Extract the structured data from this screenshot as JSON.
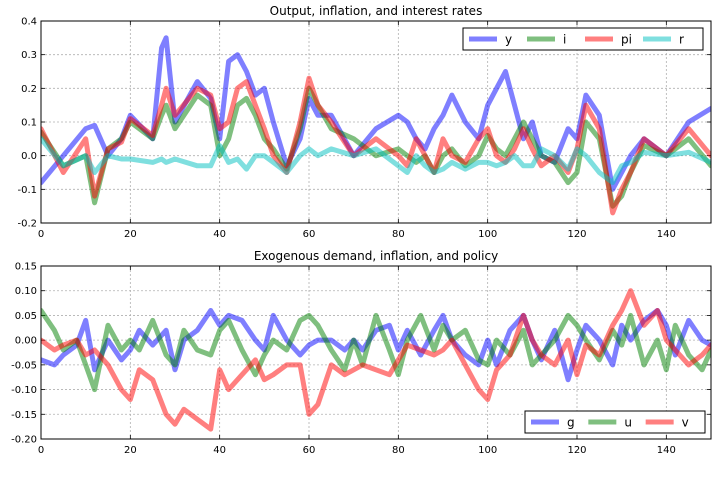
{
  "chart_data": [
    {
      "type": "line",
      "title": "Output, inflation, and interest rates",
      "xlabel": "",
      "ylabel": "",
      "xlim": [
        0,
        150
      ],
      "ylim": [
        -0.2,
        0.4
      ],
      "xticks": [
        "0",
        "20",
        "40",
        "60",
        "80",
        "100",
        "120",
        "140"
      ],
      "yticks": [
        "-0.2",
        "-0.1",
        "0.0",
        "0.1",
        "0.2",
        "0.3",
        "0.4"
      ],
      "grid": true,
      "legend": "top-right",
      "x": [
        0,
        5,
        10,
        12,
        15,
        18,
        20,
        25,
        27,
        28,
        30,
        35,
        38,
        40,
        42,
        44,
        46,
        48,
        50,
        52,
        55,
        58,
        60,
        62,
        65,
        70,
        75,
        80,
        82,
        84,
        86,
        88,
        90,
        92,
        95,
        98,
        100,
        102,
        104,
        106,
        108,
        110,
        112,
        115,
        118,
        120,
        122,
        125,
        128,
        130,
        132,
        135,
        140,
        145,
        150
      ],
      "series": [
        {
          "name": "y",
          "color": "#0000ff",
          "values": [
            -0.08,
            0.0,
            0.08,
            0.09,
            0.0,
            0.05,
            0.12,
            0.05,
            0.32,
            0.35,
            0.1,
            0.22,
            0.17,
            0.05,
            0.28,
            0.3,
            0.25,
            0.18,
            0.2,
            0.1,
            -0.03,
            0.05,
            0.17,
            0.12,
            0.12,
            0.0,
            0.08,
            0.12,
            0.1,
            0.05,
            0.02,
            0.08,
            0.12,
            0.18,
            0.1,
            0.05,
            0.15,
            0.2,
            0.25,
            0.15,
            0.05,
            0.1,
            0.0,
            -0.02,
            0.08,
            0.05,
            0.18,
            0.12,
            -0.1,
            -0.05,
            0.0,
            0.05,
            0.0,
            0.1,
            0.14
          ]
        },
        {
          "name": "i",
          "color": "#008000",
          "values": [
            0.07,
            -0.03,
            0.0,
            -0.14,
            0.02,
            0.05,
            0.1,
            0.05,
            0.12,
            0.15,
            0.08,
            0.18,
            0.15,
            0.0,
            0.05,
            0.15,
            0.17,
            0.12,
            0.05,
            0.02,
            -0.04,
            0.08,
            0.2,
            0.15,
            0.08,
            0.05,
            0.0,
            0.02,
            0.0,
            -0.02,
            0.0,
            -0.05,
            0.0,
            0.02,
            -0.03,
            0.0,
            0.06,
            0.02,
            0.0,
            0.05,
            0.1,
            0.05,
            0.0,
            -0.02,
            -0.08,
            -0.05,
            0.1,
            0.05,
            -0.15,
            -0.12,
            -0.05,
            0.03,
            0.0,
            0.05,
            -0.03
          ]
        },
        {
          "name": "pi",
          "color": "#ff0000",
          "values": [
            0.08,
            -0.05,
            0.05,
            -0.12,
            0.02,
            0.04,
            0.11,
            0.06,
            0.15,
            0.2,
            0.12,
            0.2,
            0.18,
            0.08,
            0.1,
            0.2,
            0.22,
            0.15,
            0.08,
            0.0,
            -0.05,
            0.1,
            0.23,
            0.15,
            0.1,
            0.0,
            0.05,
            0.0,
            -0.03,
            0.05,
            0.0,
            -0.05,
            0.05,
            0.0,
            -0.02,
            0.05,
            0.08,
            0.0,
            -0.02,
            0.02,
            0.08,
            0.02,
            -0.03,
            0.0,
            -0.05,
            0.02,
            0.15,
            0.08,
            -0.17,
            -0.1,
            -0.05,
            0.05,
            0.0,
            0.08,
            0.0
          ]
        },
        {
          "name": "r",
          "color": "#00bfbf",
          "values": [
            0.05,
            -0.03,
            0.0,
            -0.05,
            0.0,
            -0.01,
            -0.01,
            -0.02,
            -0.01,
            -0.02,
            -0.01,
            -0.03,
            -0.03,
            0.03,
            -0.02,
            -0.01,
            -0.04,
            0.0,
            0.0,
            -0.02,
            -0.05,
            0.0,
            0.02,
            0.0,
            0.02,
            0.0,
            0.02,
            -0.03,
            -0.05,
            0.0,
            -0.03,
            -0.05,
            -0.04,
            -0.02,
            -0.04,
            -0.02,
            -0.02,
            -0.03,
            -0.02,
            0.0,
            -0.03,
            -0.03,
            0.02,
            0.0,
            -0.04,
            0.02,
            0.0,
            -0.05,
            -0.08,
            -0.03,
            -0.02,
            0.01,
            0.0,
            0.01,
            -0.02
          ]
        }
      ]
    },
    {
      "type": "line",
      "title": "Exogenous demand, inflation, and policy",
      "xlabel": "",
      "ylabel": "",
      "xlim": [
        0,
        150
      ],
      "ylim": [
        -0.2,
        0.15
      ],
      "xticks": [
        "0",
        "20",
        "40",
        "60",
        "80",
        "100",
        "120",
        "140"
      ],
      "yticks": [
        "-0.20",
        "-0.15",
        "-0.10",
        "-0.05",
        "0.00",
        "0.05",
        "0.10",
        "0.15"
      ],
      "grid": true,
      "legend": "bottom-right",
      "x": [
        0,
        3,
        5,
        8,
        10,
        12,
        15,
        18,
        20,
        22,
        25,
        28,
        30,
        32,
        35,
        38,
        40,
        42,
        45,
        48,
        50,
        52,
        55,
        58,
        60,
        62,
        65,
        68,
        70,
        72,
        75,
        78,
        80,
        82,
        85,
        88,
        90,
        92,
        95,
        98,
        100,
        102,
        105,
        108,
        110,
        112,
        115,
        118,
        120,
        122,
        125,
        128,
        130,
        132,
        135,
        138,
        140,
        142,
        145,
        148,
        150
      ],
      "series": [
        {
          "name": "g",
          "color": "#0000ff",
          "values": [
            -0.04,
            -0.05,
            -0.03,
            -0.01,
            0.04,
            -0.06,
            0.0,
            -0.04,
            -0.02,
            0.02,
            -0.01,
            0.02,
            -0.06,
            0.0,
            0.02,
            0.06,
            0.03,
            0.05,
            0.04,
            0.0,
            -0.02,
            0.05,
            0.0,
            -0.03,
            -0.01,
            0.0,
            0.0,
            -0.02,
            0.0,
            -0.02,
            0.02,
            0.03,
            -0.02,
            0.02,
            -0.03,
            0.02,
            0.05,
            0.0,
            -0.03,
            -0.05,
            0.0,
            -0.05,
            0.02,
            0.05,
            0.0,
            -0.04,
            0.02,
            -0.08,
            -0.02,
            0.03,
            0.0,
            -0.05,
            0.03,
            0.0,
            0.04,
            0.06,
            0.03,
            -0.03,
            0.04,
            0.0,
            -0.01
          ]
        },
        {
          "name": "u",
          "color": "#008000",
          "values": [
            0.06,
            0.02,
            -0.02,
            0.0,
            -0.05,
            -0.1,
            0.03,
            -0.02,
            0.0,
            -0.02,
            0.04,
            -0.03,
            -0.05,
            0.02,
            -0.02,
            -0.03,
            0.02,
            0.04,
            -0.02,
            -0.07,
            -0.03,
            0.0,
            -0.02,
            0.04,
            0.05,
            0.03,
            -0.02,
            -0.06,
            0.0,
            -0.05,
            0.05,
            -0.02,
            -0.07,
            0.0,
            0.05,
            -0.02,
            0.03,
            0.0,
            0.02,
            -0.04,
            -0.05,
            0.0,
            -0.03,
            0.02,
            -0.05,
            -0.03,
            0.0,
            0.05,
            0.03,
            0.0,
            -0.04,
            0.02,
            -0.01,
            0.05,
            -0.05,
            0.0,
            -0.06,
            0.03,
            -0.03,
            -0.06,
            -0.02
          ]
        },
        {
          "name": "v",
          "color": "#ff0000",
          "values": [
            0.0,
            -0.02,
            -0.01,
            0.0,
            -0.03,
            -0.02,
            -0.05,
            -0.1,
            -0.12,
            -0.06,
            -0.08,
            -0.15,
            -0.17,
            -0.14,
            -0.16,
            -0.18,
            -0.06,
            -0.1,
            -0.07,
            -0.04,
            -0.08,
            -0.07,
            -0.05,
            -0.05,
            -0.15,
            -0.13,
            -0.05,
            -0.07,
            -0.06,
            -0.05,
            -0.06,
            -0.07,
            -0.04,
            -0.01,
            -0.02,
            -0.03,
            -0.02,
            0.0,
            -0.05,
            -0.1,
            -0.12,
            -0.06,
            -0.03,
            0.05,
            0.0,
            -0.03,
            -0.05,
            0.0,
            -0.07,
            -0.01,
            -0.03,
            0.03,
            0.06,
            0.1,
            0.03,
            0.06,
            0.0,
            -0.02,
            -0.05,
            -0.03,
            -0.01
          ]
        }
      ]
    }
  ]
}
